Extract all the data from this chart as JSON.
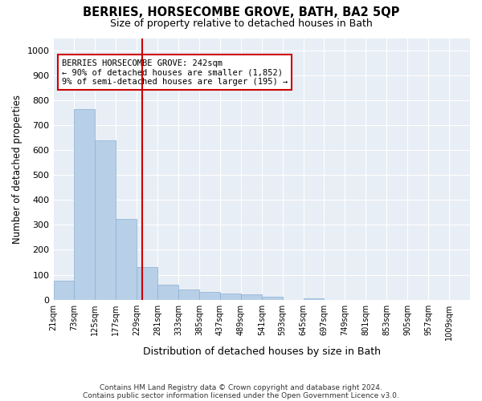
{
  "title": "BERRIES, HORSECOMBE GROVE, BATH, BA2 5QP",
  "subtitle": "Size of property relative to detached houses in Bath",
  "xlabel": "Distribution of detached houses by size in Bath",
  "ylabel": "Number of detached properties",
  "bar_color": "#b8cfe8",
  "bar_edge_color": "#8aafd4",
  "vline_color": "#cc0000",
  "vline_x": 242,
  "annotation_text": "BERRIES HORSECOMBE GROVE: 242sqm\n← 90% of detached houses are smaller (1,852)\n9% of semi-detached houses are larger (195) →",
  "annotation_box_color": "#cc0000",
  "bin_edges": [
    21,
    73,
    125,
    177,
    229,
    281,
    333,
    385,
    437,
    489,
    541,
    593,
    645,
    697,
    749,
    801,
    853,
    905,
    957,
    1009,
    1061
  ],
  "bar_heights": [
    75,
    765,
    640,
    325,
    130,
    60,
    40,
    30,
    25,
    20,
    10,
    0,
    5,
    0,
    0,
    0,
    0,
    0,
    0,
    0
  ],
  "ylim": [
    0,
    1050
  ],
  "yticks": [
    0,
    100,
    200,
    300,
    400,
    500,
    600,
    700,
    800,
    900,
    1000
  ],
  "footnote1": "Contains HM Land Registry data © Crown copyright and database right 2024.",
  "footnote2": "Contains public sector information licensed under the Open Government Licence v3.0.",
  "plot_bg_color": "#e8eef5",
  "fig_bg_color": "#ffffff",
  "grid_color": "#ffffff"
}
